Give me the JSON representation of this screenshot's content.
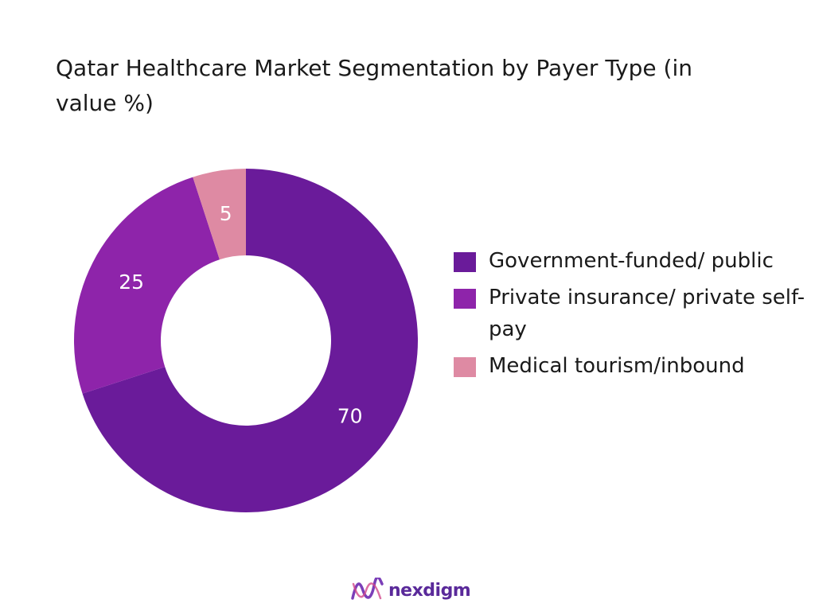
{
  "title": "Qatar Healthcare Market Segmentation by Payer Type (in value %)",
  "brand": {
    "name": "nexdigm"
  },
  "chart_data": {
    "type": "pie",
    "variant": "donut",
    "title": "Qatar Healthcare Market Segmentation by Payer Type (in value %)",
    "legend_position": "right",
    "slices": [
      {
        "label": "Government-funded/ public",
        "value": 70,
        "color": "#6a1b9a",
        "display": "70"
      },
      {
        "label": "Private insurance/ private self-pay",
        "value": 25,
        "color": "#8e24aa",
        "display": "25"
      },
      {
        "label": "Medical tourism/inbound",
        "value": 5,
        "color": "#de8aa3",
        "display": "5"
      }
    ]
  }
}
